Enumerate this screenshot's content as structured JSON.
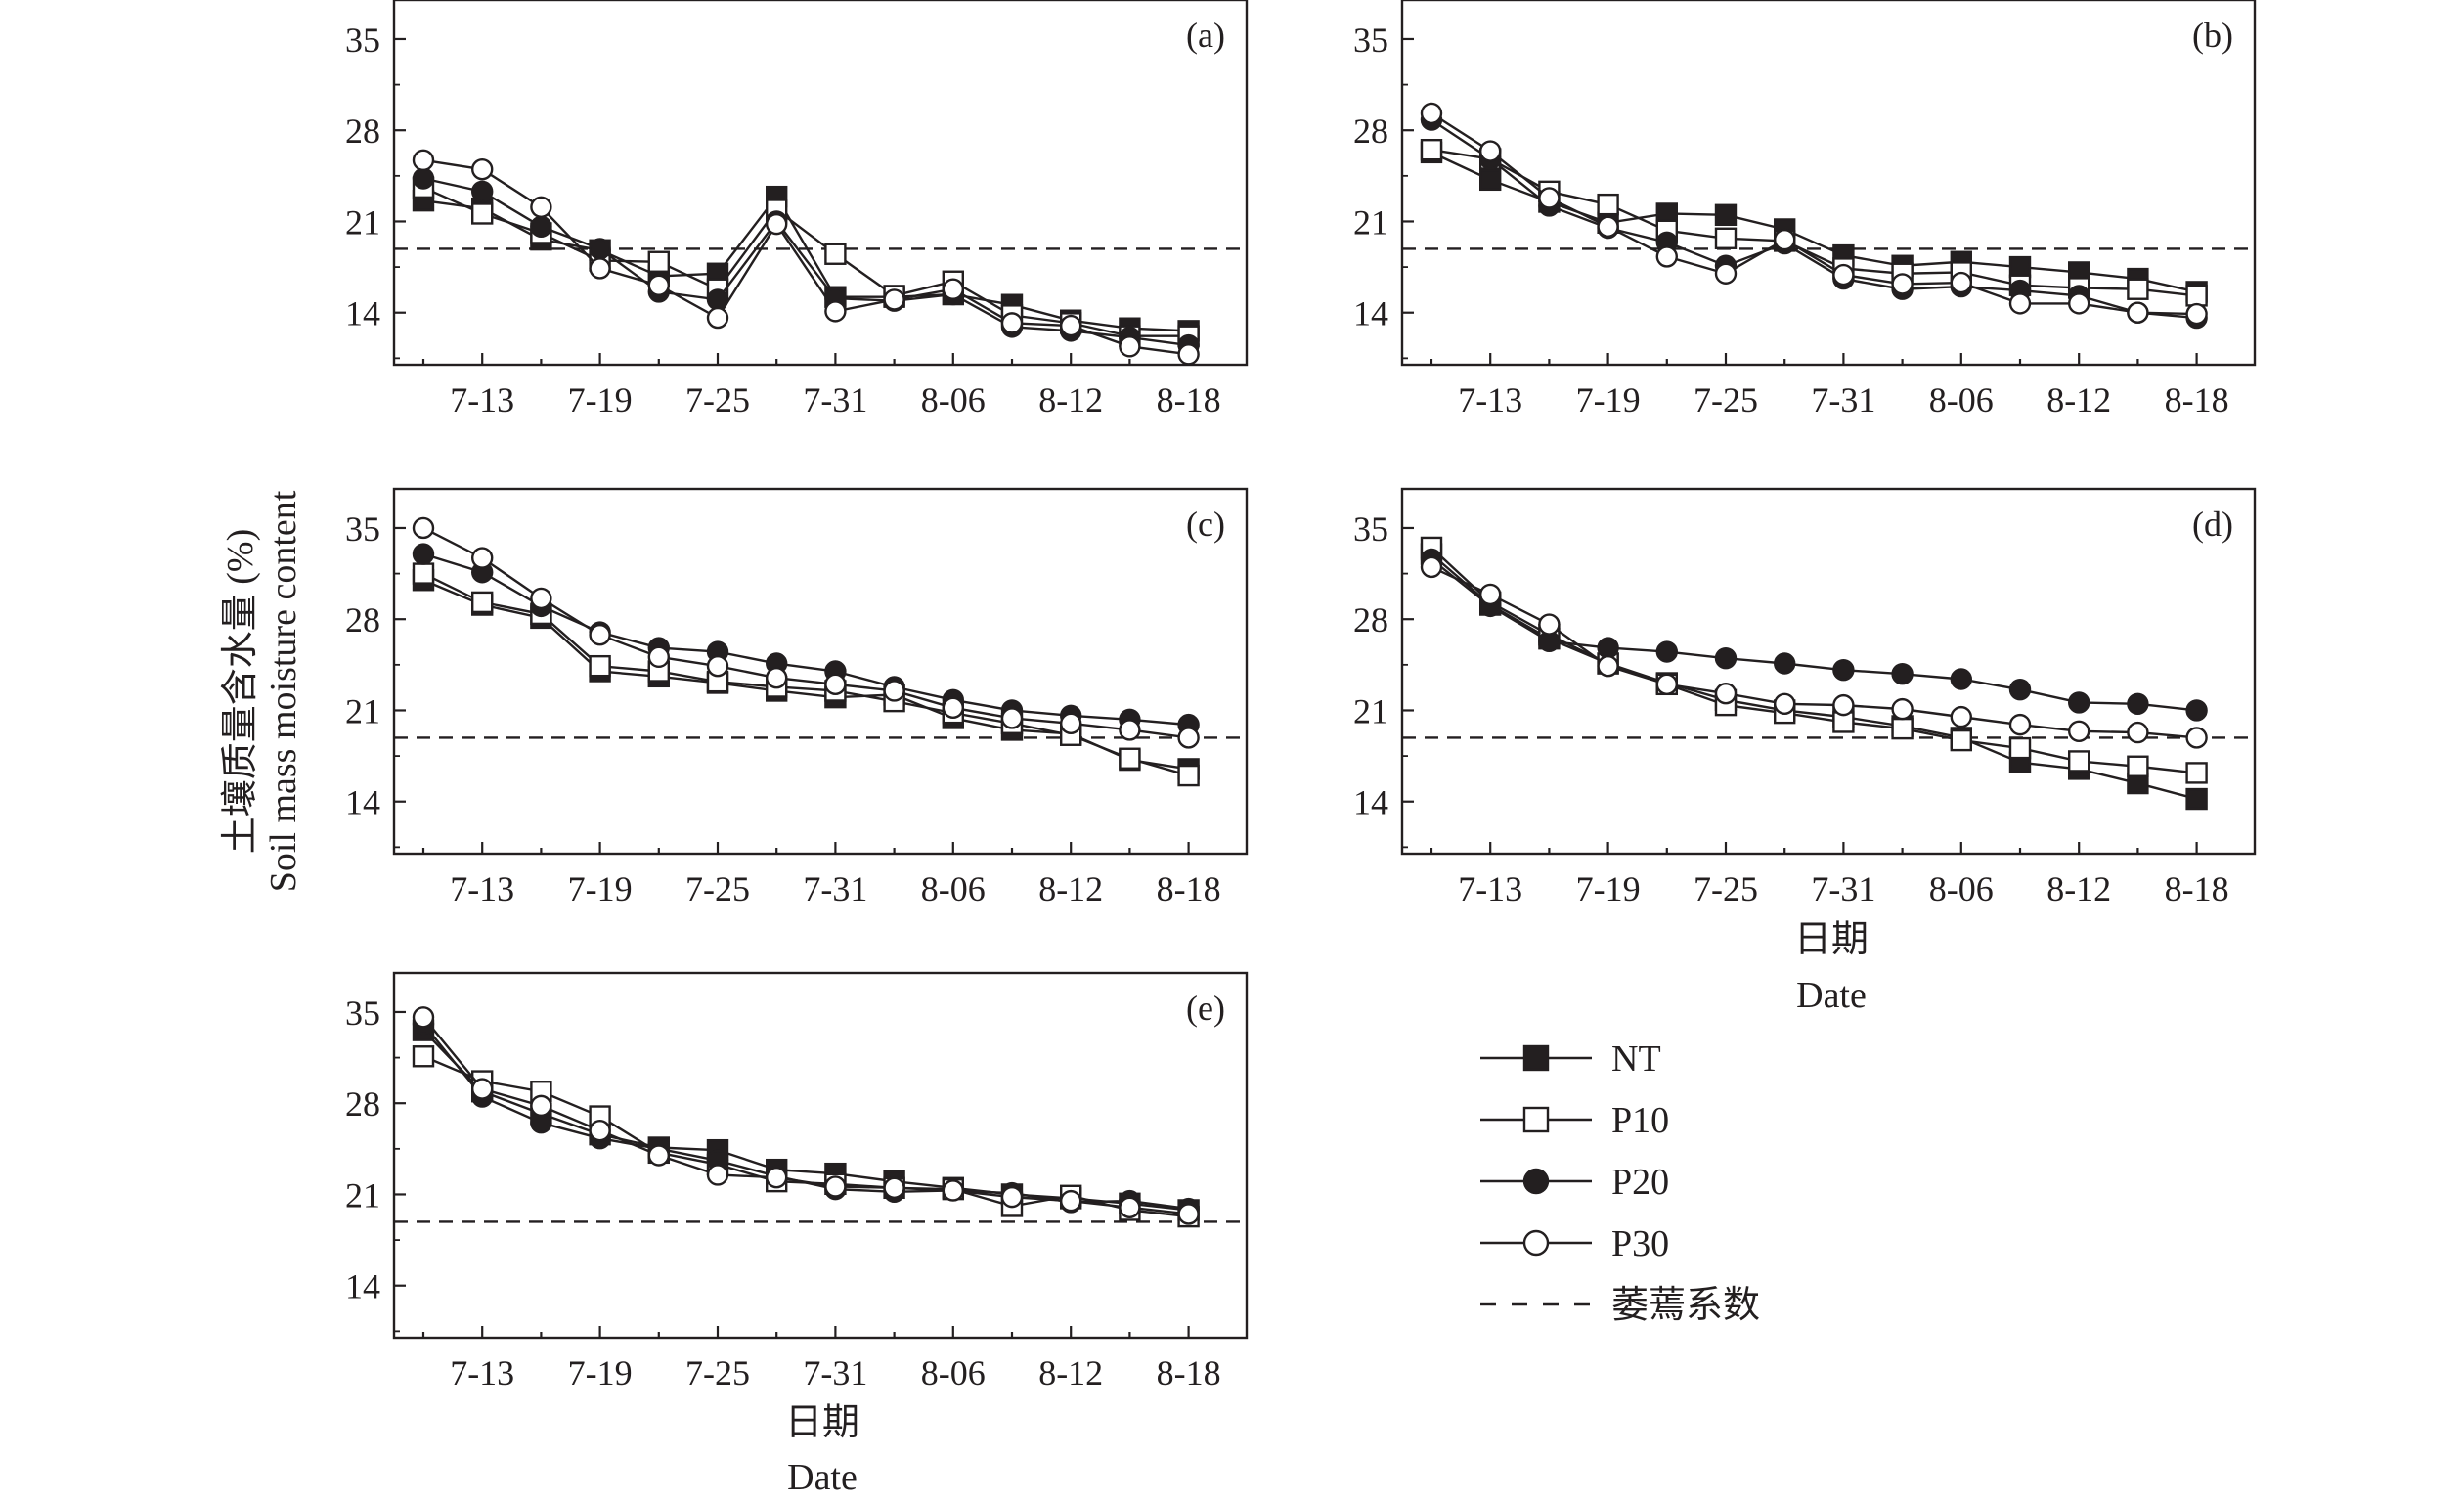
{
  "y_axis": {
    "label_cn": "土壤质量含水量 (%)",
    "label_en": "Soil mass moisture content"
  },
  "x_axis": {
    "label_cn": "日期",
    "label_en": "Date"
  },
  "colors": {
    "ink": "#231f20",
    "background": "#ffffff"
  },
  "legend": {
    "placement": "bottom-right",
    "items": [
      {
        "label": "NT",
        "marker": "filled-square"
      },
      {
        "label": "P10",
        "marker": "open-square"
      },
      {
        "label": "P20",
        "marker": "filled-circle"
      },
      {
        "label": "P30",
        "marker": "open-circle"
      },
      {
        "label": "萎蔫系数",
        "marker": "dashed-line"
      }
    ]
  },
  "chart_data": [
    {
      "type": "line",
      "panel_label": "(a)",
      "x": [
        "7-10",
        "7-13",
        "7-16",
        "7-19",
        "7-22",
        "7-25",
        "7-28",
        "7-31",
        "8-03",
        "8-06",
        "8-09",
        "8-12",
        "8-15",
        "8-18"
      ],
      "xticks": [
        "7-13",
        "7-19",
        "7-25",
        "7-31",
        "8-06",
        "8-12",
        "8-18"
      ],
      "yticks": [
        14,
        21,
        28,
        35
      ],
      "ylim": [
        10,
        38
      ],
      "wilting_coefficient": 18.9,
      "series": [
        {
          "name": "NT",
          "values": [
            22.6,
            22.0,
            19.6,
            18.8,
            16.8,
            17.0,
            22.9,
            15.2,
            15.2,
            15.4,
            14.6,
            13.4,
            12.8,
            12.6
          ]
        },
        {
          "name": "P10",
          "values": [
            23.6,
            21.6,
            20.1,
            18.0,
            17.9,
            15.8,
            21.9,
            18.5,
            15.3,
            16.4,
            13.8,
            13.2,
            12.2,
            12.2
          ]
        },
        {
          "name": "P20",
          "values": [
            24.3,
            23.3,
            20.6,
            18.9,
            15.6,
            15.0,
            21.0,
            15.1,
            14.9,
            15.4,
            12.9,
            12.6,
            12.1,
            11.5
          ]
        },
        {
          "name": "P30",
          "values": [
            25.7,
            25.0,
            22.1,
            17.4,
            16.1,
            13.6,
            20.8,
            14.1,
            15.0,
            15.8,
            13.2,
            13.0,
            11.4,
            10.8
          ]
        }
      ]
    },
    {
      "type": "line",
      "panel_label": "(b)",
      "x": [
        "7-10",
        "7-13",
        "7-16",
        "7-19",
        "7-22",
        "7-25",
        "7-28",
        "7-31",
        "8-03",
        "8-06",
        "8-09",
        "8-12",
        "8-15",
        "8-18"
      ],
      "xticks": [
        "7-13",
        "7-19",
        "7-25",
        "7-31",
        "8-06",
        "8-12",
        "8-18"
      ],
      "yticks": [
        14,
        21,
        28,
        35
      ],
      "ylim": [
        10,
        38
      ],
      "wilting_coefficient": 18.9,
      "series": [
        {
          "name": "NT",
          "values": [
            26.3,
            24.2,
            22.5,
            20.9,
            21.6,
            21.5,
            20.4,
            18.4,
            17.6,
            17.9,
            17.5,
            17.1,
            16.6,
            15.6
          ]
        },
        {
          "name": "P10",
          "values": [
            26.5,
            25.8,
            23.3,
            22.3,
            20.3,
            19.7,
            19.5,
            17.4,
            17.0,
            17.1,
            16.1,
            15.9,
            15.8,
            15.3
          ]
        },
        {
          "name": "P20",
          "values": [
            28.8,
            25.8,
            22.2,
            20.5,
            19.4,
            17.6,
            19.3,
            16.6,
            15.8,
            16.0,
            15.7,
            15.3,
            14.0,
            13.6
          ]
        },
        {
          "name": "P30",
          "values": [
            29.3,
            26.4,
            22.8,
            20.6,
            18.3,
            17.0,
            19.6,
            16.9,
            16.2,
            16.3,
            14.7,
            14.7,
            14.0,
            13.9
          ]
        }
      ]
    },
    {
      "type": "line",
      "panel_label": "(c)",
      "x": [
        "7-10",
        "7-13",
        "7-16",
        "7-19",
        "7-22",
        "7-25",
        "7-28",
        "7-31",
        "8-03",
        "8-06",
        "8-09",
        "8-12",
        "8-15",
        "8-18"
      ],
      "xticks": [
        "7-13",
        "7-19",
        "7-25",
        "7-31",
        "8-06",
        "8-12",
        "8-18"
      ],
      "yticks": [
        14,
        21,
        28,
        35
      ],
      "ylim": [
        10,
        38
      ],
      "wilting_coefficient": 18.9,
      "series": [
        {
          "name": "NT",
          "values": [
            31.0,
            29.1,
            28.1,
            24.0,
            23.6,
            23.1,
            22.5,
            22.0,
            22.2,
            20.4,
            19.5,
            19.2,
            17.2,
            16.5
          ]
        },
        {
          "name": "P10",
          "values": [
            31.5,
            29.3,
            28.4,
            24.4,
            24.0,
            23.2,
            22.8,
            22.5,
            21.7,
            20.8,
            20.0,
            19.1,
            17.3,
            16.0
          ]
        },
        {
          "name": "P20",
          "values": [
            33.0,
            31.6,
            29.0,
            27.0,
            25.8,
            25.5,
            24.6,
            24.0,
            22.8,
            21.8,
            21.0,
            20.6,
            20.3,
            19.9
          ]
        },
        {
          "name": "P30",
          "values": [
            35.0,
            32.7,
            29.6,
            26.8,
            25.1,
            24.4,
            23.5,
            23.0,
            22.5,
            21.2,
            20.4,
            20.0,
            19.5,
            18.9
          ]
        }
      ]
    },
    {
      "type": "line",
      "panel_label": "(d)",
      "x": [
        "7-10",
        "7-13",
        "7-16",
        "7-19",
        "7-22",
        "7-25",
        "7-28",
        "7-31",
        "8-03",
        "8-06",
        "8-09",
        "8-12",
        "8-15",
        "8-18"
      ],
      "xticks": [
        "7-13",
        "7-19",
        "7-25",
        "7-31",
        "8-06",
        "8-12",
        "8-18"
      ],
      "yticks": [
        14,
        21,
        28,
        35
      ],
      "ylim": [
        10,
        38
      ],
      "wilting_coefficient": 18.9,
      "series": [
        {
          "name": "NT",
          "values": [
            33.0,
            29.1,
            26.5,
            24.6,
            23.1,
            21.8,
            21.0,
            20.5,
            19.8,
            18.9,
            17.0,
            16.5,
            15.4,
            14.2
          ]
        },
        {
          "name": "P10",
          "values": [
            33.5,
            29.3,
            26.8,
            24.6,
            23.0,
            21.4,
            20.8,
            20.1,
            19.6,
            18.7,
            18.1,
            17.1,
            16.7,
            16.2
          ]
        },
        {
          "name": "P20",
          "values": [
            32.6,
            29.0,
            26.3,
            25.8,
            25.5,
            25.0,
            24.6,
            24.1,
            23.8,
            23.4,
            22.6,
            21.6,
            21.5,
            21.0
          ]
        },
        {
          "name": "P30",
          "values": [
            32.0,
            29.9,
            27.6,
            24.4,
            23.0,
            22.3,
            21.5,
            21.4,
            21.1,
            20.5,
            19.9,
            19.4,
            19.3,
            18.9
          ]
        }
      ]
    },
    {
      "type": "line",
      "panel_label": "(e)",
      "x": [
        "7-10",
        "7-13",
        "7-16",
        "7-19",
        "7-22",
        "7-25",
        "7-28",
        "7-31",
        "8-03",
        "8-06",
        "8-09",
        "8-12",
        "8-15",
        "8-18"
      ],
      "xticks": [
        "7-13",
        "7-19",
        "7-25",
        "7-31",
        "8-06",
        "8-12",
        "8-18"
      ],
      "yticks": [
        14,
        21,
        28,
        35
      ],
      "ylim": [
        10,
        38
      ],
      "wilting_coefficient": 18.9,
      "series": [
        {
          "name": "NT",
          "values": [
            33.6,
            28.9,
            27.2,
            25.6,
            24.6,
            24.4,
            22.9,
            22.6,
            22.0,
            21.5,
            21.0,
            20.7,
            20.3,
            19.8
          ]
        },
        {
          "name": "P10",
          "values": [
            31.6,
            29.7,
            28.9,
            27.0,
            24.2,
            23.3,
            22.0,
            21.8,
            21.5,
            21.4,
            20.1,
            20.9,
            19.8,
            19.3
          ]
        },
        {
          "name": "P20",
          "values": [
            34.1,
            28.5,
            26.5,
            25.3,
            24.5,
            23.6,
            22.4,
            21.4,
            21.2,
            21.3,
            21.1,
            20.4,
            20.5,
            19.9
          ]
        },
        {
          "name": "P30",
          "values": [
            34.6,
            29.1,
            27.8,
            25.9,
            24.0,
            22.5,
            22.3,
            21.6,
            21.5,
            21.3,
            20.8,
            20.5,
            20.0,
            19.5
          ]
        }
      ]
    }
  ]
}
